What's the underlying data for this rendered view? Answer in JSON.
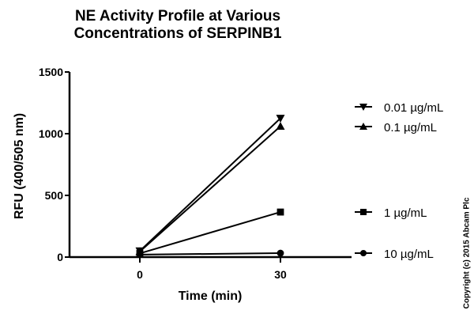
{
  "chart_data": {
    "type": "line",
    "title": "NE Activity Profile at Various Concentrations of SERPINB1",
    "title_lines": [
      "NE Activity Profile at Various",
      "Concentrations of SERPINB1"
    ],
    "xlabel": "Time (min)",
    "ylabel": "RFU (400/505 nm)",
    "x": [
      0,
      30
    ],
    "x_ticks": [
      "0",
      "30"
    ],
    "y_ticks": [
      "0",
      "500",
      "1000",
      "1500"
    ],
    "ylim": [
      0,
      1500
    ],
    "grid": false,
    "legend_position": "right",
    "series": [
      {
        "name": "0.01 µg/mL",
        "marker": "triangle-down",
        "values": [
          50,
          1125
        ]
      },
      {
        "name": "0.1 µg/mL",
        "marker": "triangle-up",
        "values": [
          45,
          1060
        ]
      },
      {
        "name": "1 µg/mL",
        "marker": "square",
        "values": [
          30,
          365
        ]
      },
      {
        "name": "10 µg/mL",
        "marker": "circle",
        "values": [
          20,
          32
        ]
      }
    ],
    "annotations": [
      "Copyright (c) 2015 Abcam Plc"
    ]
  }
}
